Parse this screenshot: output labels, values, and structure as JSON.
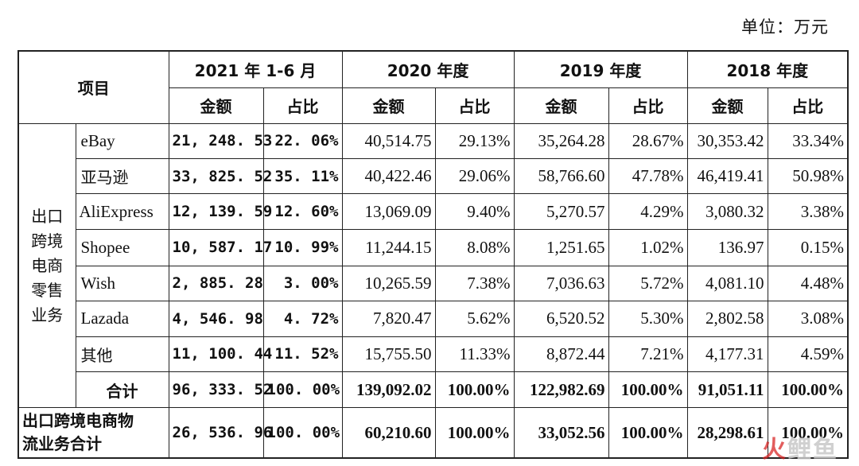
{
  "unit_label": "单位：万元",
  "header": {
    "item": "项目",
    "periods": [
      "2021 年 1-6 月",
      "2020 年度",
      "2019 年度",
      "2018 年度"
    ],
    "amount": "金额",
    "share": "占比"
  },
  "category": [
    "出口",
    "跨境",
    "电商",
    "零售",
    "业务"
  ],
  "rows": [
    {
      "platform": "eBay",
      "v": [
        "21, 248. 53",
        "22. 06%",
        "40,514.75",
        "29.13%",
        "35,264.28",
        "28.67%",
        "30,353.42",
        "33.34%"
      ]
    },
    {
      "platform": "亚马逊",
      "v": [
        "33, 825. 52",
        "35. 11%",
        "40,422.46",
        "29.06%",
        "58,766.60",
        "47.78%",
        "46,419.41",
        "50.98%"
      ]
    },
    {
      "platform": "AliExpress",
      "v": [
        "12, 139. 59",
        "12. 60%",
        "13,069.09",
        "9.40%",
        "5,270.57",
        "4.29%",
        "3,080.32",
        "3.38%"
      ]
    },
    {
      "platform": "Shopee",
      "v": [
        "10, 587. 17",
        "10. 99%",
        "11,244.15",
        "8.08%",
        "1,251.65",
        "1.02%",
        "136.97",
        "0.15%"
      ]
    },
    {
      "platform": "Wish",
      "v": [
        "2, 885. 28",
        "3. 00%",
        "10,265.59",
        "7.38%",
        "7,036.63",
        "5.72%",
        "4,081.10",
        "4.48%"
      ]
    },
    {
      "platform": "Lazada",
      "v": [
        "4, 546. 98",
        "4. 72%",
        "7,820.47",
        "5.62%",
        "6,520.52",
        "5.30%",
        "2,802.58",
        "3.08%"
      ]
    },
    {
      "platform": "其他",
      "v": [
        "11, 100. 44",
        "11. 52%",
        "15,755.50",
        "11.33%",
        "8,872.44",
        "7.21%",
        "4,177.31",
        "4.59%"
      ]
    }
  ],
  "subtotal": {
    "label": "合计",
    "v": [
      "96, 333. 52",
      "100. 00%",
      "139,092.02",
      "100.00%",
      "122,982.69",
      "100.00%",
      "91,051.11",
      "100.00%"
    ]
  },
  "logistics": {
    "label_line1": "出口跨境电商物",
    "label_line2": "流业务合计",
    "v": [
      "26, 536. 96",
      "100. 00%",
      "60,210.60",
      "100.00%",
      "33,052.56",
      "100.00%",
      "28,298.61",
      "100.00%"
    ]
  },
  "watermark": {
    "part1": "火",
    "part2": "鲤鱼"
  }
}
